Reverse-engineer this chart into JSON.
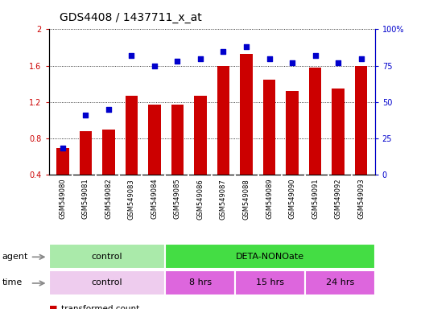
{
  "title": "GDS4408 / 1437711_x_at",
  "samples": [
    "GSM549080",
    "GSM549081",
    "GSM549082",
    "GSM549083",
    "GSM549084",
    "GSM549085",
    "GSM549086",
    "GSM549087",
    "GSM549088",
    "GSM549089",
    "GSM549090",
    "GSM549091",
    "GSM549092",
    "GSM549093"
  ],
  "bar_values": [
    0.69,
    0.88,
    0.9,
    1.27,
    1.17,
    1.17,
    1.27,
    1.6,
    1.73,
    1.45,
    1.32,
    1.58,
    1.35,
    1.6
  ],
  "dot_right_vals": [
    18,
    41,
    45,
    82,
    75,
    78,
    80,
    85,
    88,
    80,
    77,
    82,
    77,
    80
  ],
  "bar_color": "#cc0000",
  "dot_color": "#0000cc",
  "ylim_left": [
    0.4,
    2.0
  ],
  "ylim_right": [
    0,
    100
  ],
  "yticks_left": [
    0.4,
    0.8,
    1.2,
    1.6,
    2.0
  ],
  "ytick_labels_left": [
    "0.4",
    "0.8",
    "1.2",
    "1.6",
    "2"
  ],
  "yticks_right": [
    0,
    25,
    50,
    75,
    100
  ],
  "ytick_labels_right": [
    "0",
    "25",
    "50",
    "75",
    "100%"
  ],
  "agent_groups": [
    {
      "label": "control",
      "color": "#aaeaaa",
      "span": [
        0,
        5
      ]
    },
    {
      "label": "DETA-NONOate",
      "color": "#44dd44",
      "span": [
        5,
        14
      ]
    }
  ],
  "time_groups": [
    {
      "label": "control",
      "color": "#eeccee",
      "span": [
        0,
        5
      ]
    },
    {
      "label": "8 hrs",
      "color": "#dd66dd",
      "span": [
        5,
        8
      ]
    },
    {
      "label": "15 hrs",
      "color": "#dd66dd",
      "span": [
        8,
        11
      ]
    },
    {
      "label": "24 hrs",
      "color": "#dd66dd",
      "span": [
        11,
        14
      ]
    }
  ],
  "bg_color": "#ffffff",
  "bar_width": 0.55,
  "title_fontsize": 10,
  "tick_fontsize": 7,
  "sample_fontsize": 6,
  "annotation_fontsize": 8,
  "legend_fontsize": 7.5
}
